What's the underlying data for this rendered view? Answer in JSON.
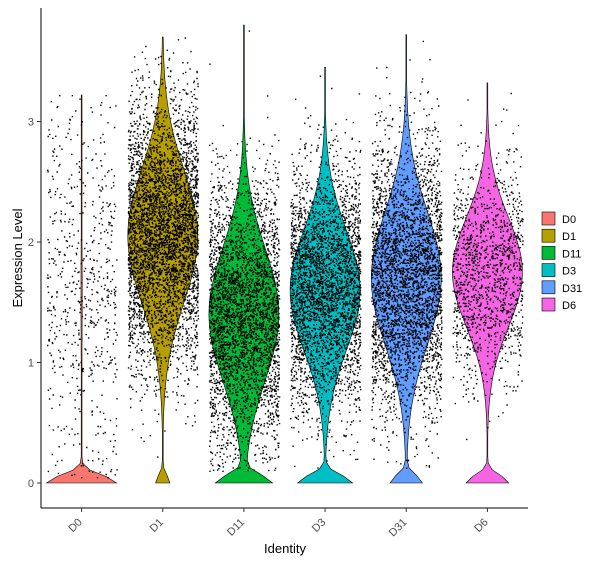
{
  "chart_data": {
    "type": "violin",
    "title": "",
    "xlabel": "Identity",
    "ylabel": "Expression Level",
    "categories": [
      "D0",
      "D1",
      "D11",
      "D3",
      "D31",
      "D6"
    ],
    "colors": [
      "#F8766D",
      "#B79F00",
      "#00BA38",
      "#00BFC4",
      "#619CFF",
      "#F564E3"
    ],
    "yticks": [
      0,
      1,
      2,
      3
    ],
    "ylim": [
      -0.2,
      3.95
    ],
    "legend": {
      "position": "right",
      "labels": [
        "D0",
        "D1",
        "D11",
        "D3",
        "D31",
        "D6"
      ]
    },
    "series": [
      {
        "name": "D0",
        "max": 3.22,
        "zero_fraction": 0.97,
        "nonzero_median": 1.55,
        "nonzero_spread": 0.6,
        "point_count": 620
      },
      {
        "name": "D1",
        "max": 3.7,
        "zero_fraction": 0.1,
        "nonzero_median": 2.05,
        "nonzero_spread": 0.55,
        "point_count": 4200
      },
      {
        "name": "D11",
        "max": 3.8,
        "zero_fraction": 0.3,
        "nonzero_median": 1.4,
        "nonzero_spread": 0.55,
        "point_count": 4000
      },
      {
        "name": "D3",
        "max": 3.45,
        "zero_fraction": 0.3,
        "nonzero_median": 1.6,
        "nonzero_spread": 0.5,
        "point_count": 3400
      },
      {
        "name": "D31",
        "max": 3.72,
        "zero_fraction": 0.2,
        "nonzero_median": 1.7,
        "nonzero_spread": 0.55,
        "point_count": 4400
      },
      {
        "name": "D6",
        "max": 3.32,
        "zero_fraction": 0.25,
        "nonzero_median": 1.75,
        "nonzero_spread": 0.45,
        "point_count": 1300
      }
    ]
  }
}
